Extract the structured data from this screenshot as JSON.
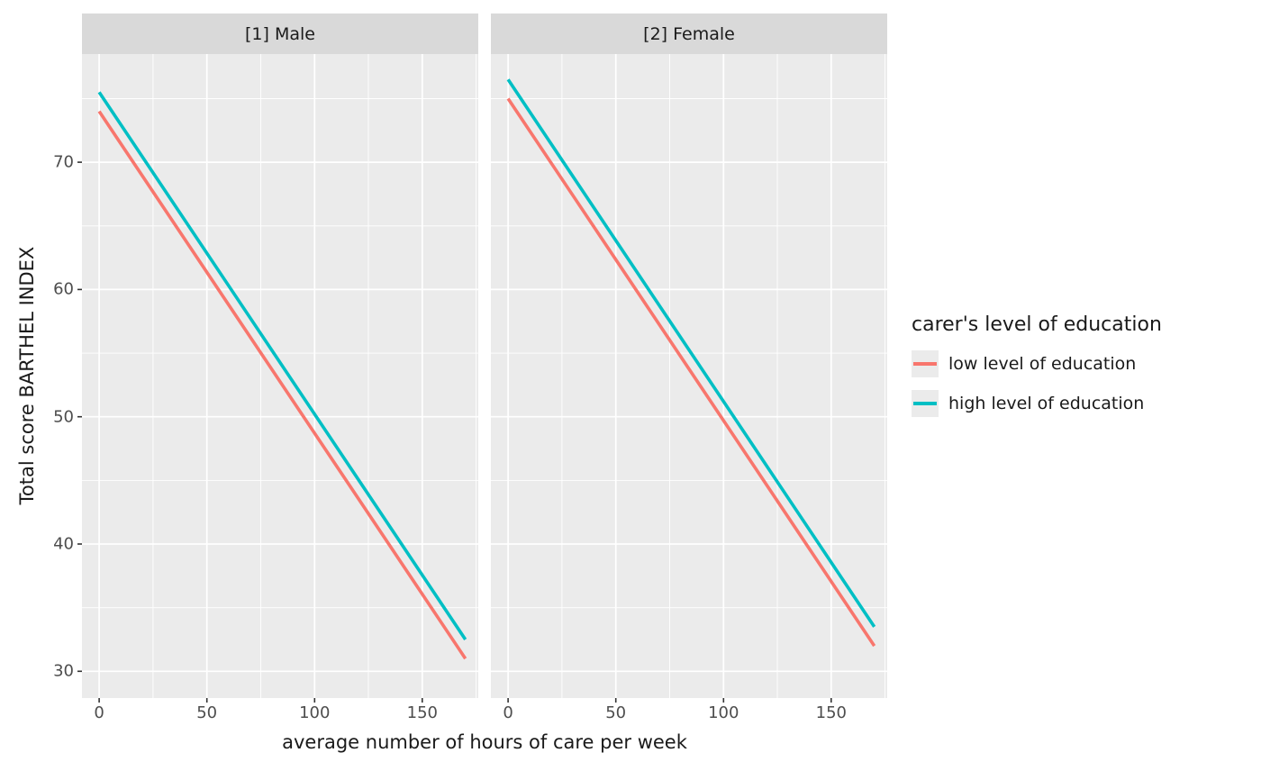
{
  "figure": {
    "background": "#FFFFFF",
    "panel_background": "#EBEBEB",
    "strip_background": "#D9D9D9",
    "gridline_color": "#FFFFFF",
    "tick_mark_color": "#333333",
    "tick_text_color": "#4D4D4D"
  },
  "legend": {
    "title": "carer's level of education",
    "entries": [
      {
        "label": "low level of education",
        "color": "#F8766D"
      },
      {
        "label": "high level of education",
        "color": "#00BFC4"
      }
    ]
  },
  "chart_data": {
    "type": "line",
    "title": "",
    "xlabel": "average number of hours of care per week",
    "ylabel": "Total score BARTHEL INDEX",
    "xlim": [
      -8,
      176
    ],
    "ylim": [
      27.9,
      78.5
    ],
    "x_ticks": [
      0,
      50,
      100,
      150
    ],
    "x_minor_ticks": [
      25,
      75,
      125,
      175
    ],
    "y_ticks": [
      30,
      40,
      50,
      60,
      70
    ],
    "y_minor_ticks": [
      35,
      45,
      55,
      65,
      75
    ],
    "grid": true,
    "legend_position": "right",
    "facets": [
      {
        "label": "[1] Male",
        "series": [
          {
            "name": "low level of education",
            "color": "#F8766D",
            "points": [
              [
                0,
                74
              ],
              [
                170,
                31
              ]
            ]
          },
          {
            "name": "high level of education",
            "color": "#00BFC4",
            "points": [
              [
                0,
                75.5
              ],
              [
                170,
                32.5
              ]
            ]
          }
        ]
      },
      {
        "label": "[2] Female",
        "series": [
          {
            "name": "low level of education",
            "color": "#F8766D",
            "points": [
              [
                0,
                75
              ],
              [
                170,
                32
              ]
            ]
          },
          {
            "name": "high level of education",
            "color": "#00BFC4",
            "points": [
              [
                0,
                76.5
              ],
              [
                170,
                33.5
              ]
            ]
          }
        ]
      }
    ]
  }
}
